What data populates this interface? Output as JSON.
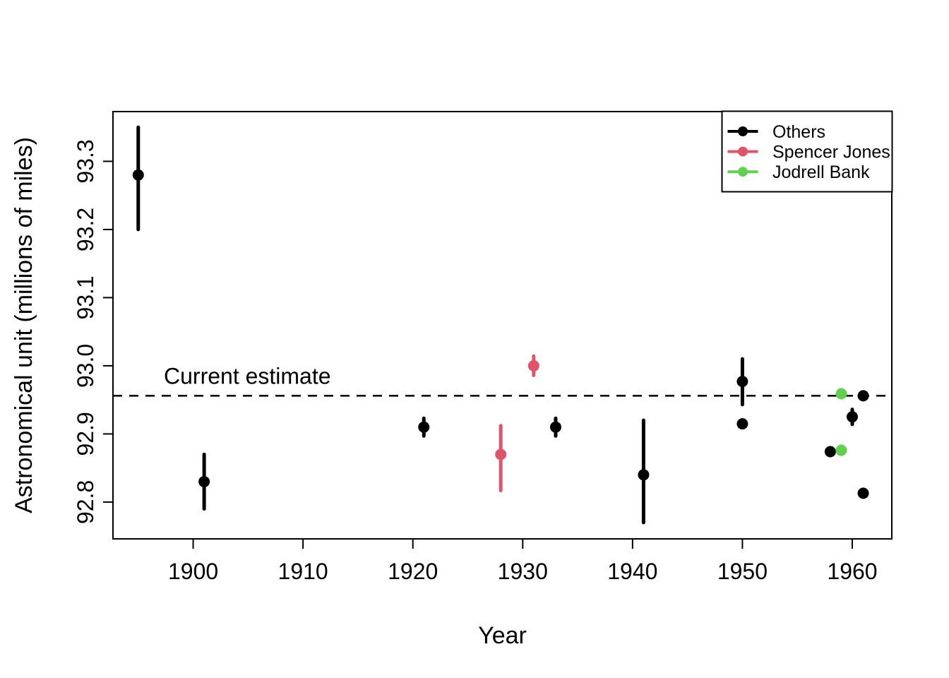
{
  "chart_data": {
    "type": "scatter",
    "title": "",
    "xlabel": "Year",
    "ylabel": "Astronomical unit (millions of miles)",
    "xlim": [
      1892.7,
      1963.6
    ],
    "ylim": [
      92.746,
      93.373
    ],
    "x_ticks": [
      1900,
      1910,
      1920,
      1930,
      1940,
      1950,
      1960
    ],
    "y_ticks": [
      92.8,
      92.9,
      93.0,
      93.1,
      93.2,
      93.3
    ],
    "y_tick_labels": [
      "92.8",
      "92.9",
      "93.0",
      "93.1",
      "93.2",
      "93.3"
    ],
    "grid": false,
    "marker": "filled-circle",
    "error_bars": true,
    "reference_line": {
      "label": "Current estimate",
      "value": 92.956,
      "style": "dashed",
      "color": "#000000"
    },
    "legend": {
      "position": "top-right",
      "entries": [
        {
          "label": "Others",
          "color": "#000000"
        },
        {
          "label": "Spencer Jones",
          "color": "#DF536B"
        },
        {
          "label": "Jodrell Bank",
          "color": "#61D04F"
        }
      ]
    },
    "series": [
      {
        "name": "Others",
        "color": "#000000",
        "points": [
          {
            "year": 1895,
            "value": 93.28,
            "lo": 93.2,
            "hi": 93.35
          },
          {
            "year": 1901,
            "value": 92.83,
            "lo": 92.79,
            "hi": 92.87
          },
          {
            "year": 1921,
            "value": 92.91,
            "lo": 92.897,
            "hi": 92.923
          },
          {
            "year": 1933,
            "value": 92.91,
            "lo": 92.897,
            "hi": 92.923
          },
          {
            "year": 1941,
            "value": 92.84,
            "lo": 92.77,
            "hi": 92.92
          },
          {
            "year": 1950,
            "value": 92.977,
            "lo": 92.943,
            "hi": 93.01
          },
          {
            "year": 1950,
            "value": 92.9148
          },
          {
            "year": 1958,
            "value": 92.874
          },
          {
            "year": 1960,
            "value": 92.9251,
            "lo": 92.914,
            "hi": 92.936
          },
          {
            "year": 1961,
            "value": 92.956
          },
          {
            "year": 1961,
            "value": 92.813
          }
        ]
      },
      {
        "name": "Spencer Jones",
        "color": "#DF536B",
        "points": [
          {
            "year": 1928,
            "value": 92.87,
            "lo": 92.817,
            "hi": 92.912
          },
          {
            "year": 1931,
            "value": 93.0,
            "lo": 92.986,
            "hi": 93.014
          }
        ]
      },
      {
        "name": "Jodrell Bank",
        "color": "#61D04F",
        "points": [
          {
            "year": 1959,
            "value": 92.959
          },
          {
            "year": 1959,
            "value": 92.876
          }
        ]
      }
    ]
  }
}
